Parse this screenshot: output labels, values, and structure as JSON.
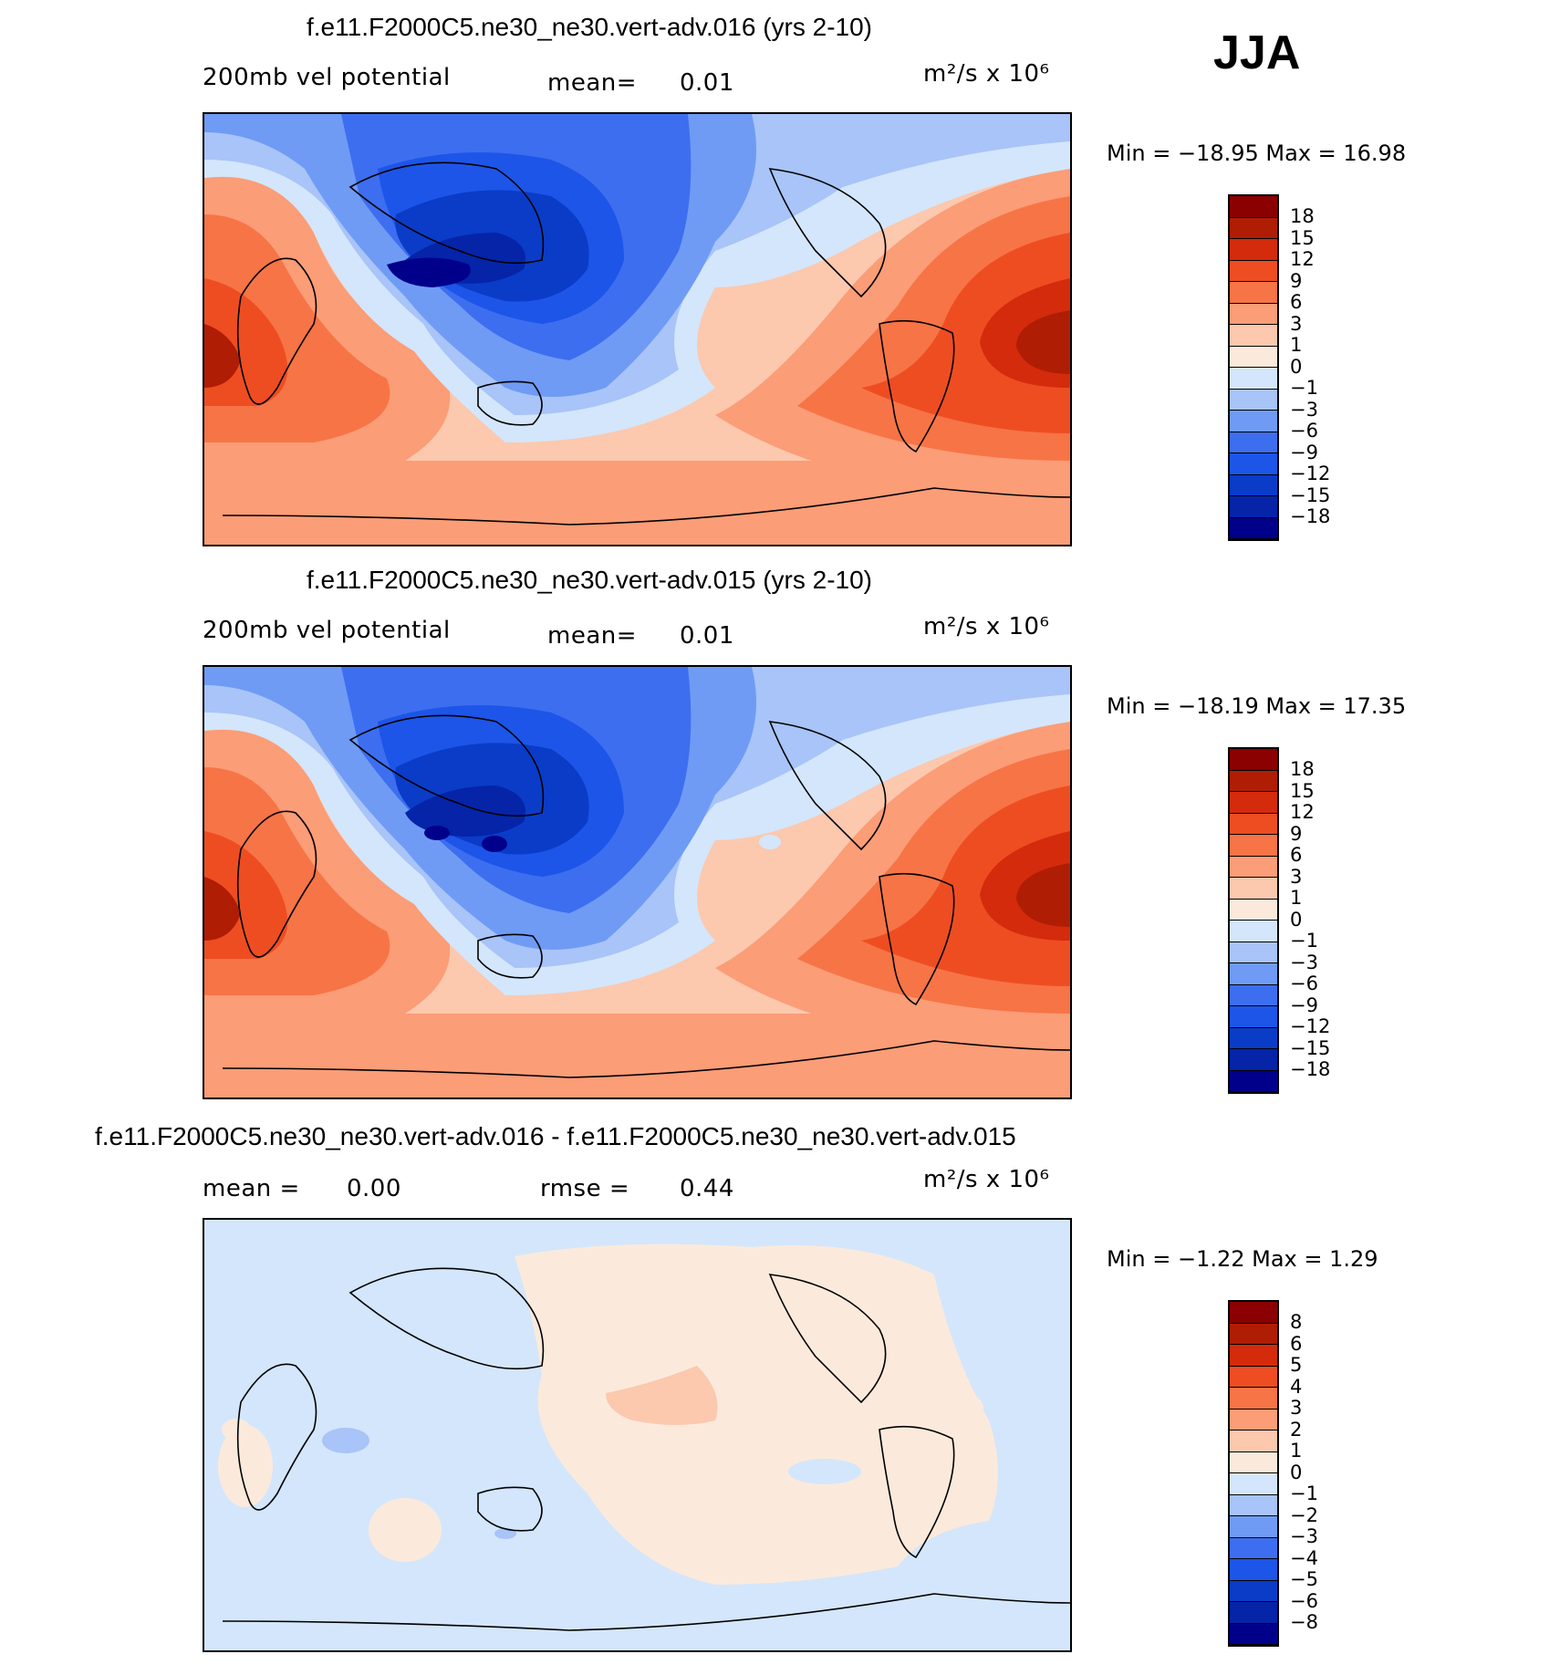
{
  "season": "JJA",
  "panels": [
    {
      "title": "f.e11.F2000C5.ne30_ne30.vert-adv.016 (yrs 2-10)",
      "field": "200mb vel potential",
      "stat1_label": "mean=",
      "stat1_value": "0.01",
      "units": "m²/s x 10⁶",
      "minmax": "Min = −18.95 Max = 16.98",
      "colorbar_ticks": [
        "18",
        "15",
        "12",
        "9",
        "6",
        "3",
        "1",
        "0",
        "−1",
        "−3",
        "−6",
        "−9",
        "−12",
        "−15",
        "−18"
      ]
    },
    {
      "title": "f.e11.F2000C5.ne30_ne30.vert-adv.015 (yrs 2-10)",
      "field": "200mb vel potential",
      "stat1_label": "mean=",
      "stat1_value": "0.01",
      "units": "m²/s x 10⁶",
      "minmax": "Min = −18.19 Max = 17.35",
      "colorbar_ticks": [
        "18",
        "15",
        "12",
        "9",
        "6",
        "3",
        "1",
        "0",
        "−1",
        "−3",
        "−6",
        "−9",
        "−12",
        "−15",
        "−18"
      ]
    },
    {
      "title": "f.e11.F2000C5.ne30_ne30.vert-adv.016 - f.e11.F2000C5.ne30_ne30.vert-adv.015",
      "stat1_label": "mean =",
      "stat1_value": "0.00",
      "stat2_label": "rmse =",
      "stat2_value": "0.44",
      "units": "m²/s x 10⁶",
      "minmax": "Min = −1.22 Max = 1.29",
      "colorbar_ticks": [
        "8",
        "6",
        "5",
        "4",
        "3",
        "2",
        "1",
        "0",
        "−1",
        "−2",
        "−3",
        "−4",
        "−5",
        "−6",
        "−8"
      ]
    }
  ],
  "chart_data": [
    {
      "type": "heatmap",
      "title": "f.e11.F2000C5.ne30_ne30.vert-adv.016 (yrs 2-10)",
      "variable": "200mb vel potential",
      "units": "m²/s x 10⁶",
      "season": "JJA",
      "mean": 0.01,
      "min": -18.95,
      "max": 16.98,
      "levels": [
        -18,
        -15,
        -12,
        -9,
        -6,
        -3,
        -1,
        0,
        1,
        3,
        6,
        9,
        12,
        15,
        18
      ],
      "palette": [
        "#00008b",
        "#0524a8",
        "#0a3cc8",
        "#1d55e8",
        "#3d6ef0",
        "#6f9bf5",
        "#a8c4f8",
        "#d4e6fb",
        "#fbeadc",
        "#fcc8ae",
        "#fb9d77",
        "#f77446",
        "#ee4d22",
        "#d42b0c",
        "#b01d05",
        "#8b0000"
      ]
    },
    {
      "type": "heatmap",
      "title": "f.e11.F2000C5.ne30_ne30.vert-adv.015 (yrs 2-10)",
      "variable": "200mb vel potential",
      "units": "m²/s x 10⁶",
      "season": "JJA",
      "mean": 0.01,
      "min": -18.19,
      "max": 17.35,
      "levels": [
        -18,
        -15,
        -12,
        -9,
        -6,
        -3,
        -1,
        0,
        1,
        3,
        6,
        9,
        12,
        15,
        18
      ],
      "palette": [
        "#00008b",
        "#0524a8",
        "#0a3cc8",
        "#1d55e8",
        "#3d6ef0",
        "#6f9bf5",
        "#a8c4f8",
        "#d4e6fb",
        "#fbeadc",
        "#fcc8ae",
        "#fb9d77",
        "#f77446",
        "#ee4d22",
        "#d42b0c",
        "#b01d05",
        "#8b0000"
      ]
    },
    {
      "type": "heatmap",
      "title": "f.e11.F2000C5.ne30_ne30.vert-adv.016 - f.e11.F2000C5.ne30_ne30.vert-adv.015",
      "units": "m²/s x 10⁶",
      "season": "JJA",
      "mean": 0.0,
      "rmse": 0.44,
      "min": -1.22,
      "max": 1.29,
      "levels": [
        -8,
        -6,
        -5,
        -4,
        -3,
        -2,
        -1,
        0,
        1,
        2,
        3,
        4,
        5,
        6,
        8
      ],
      "palette": [
        "#00008b",
        "#0524a8",
        "#0a3cc8",
        "#1d55e8",
        "#3d6ef0",
        "#6f9bf5",
        "#a8c4f8",
        "#d4e6fb",
        "#fbeadc",
        "#fcc8ae",
        "#fb9d77",
        "#f77446",
        "#ee4d22",
        "#d42b0c",
        "#b01d05",
        "#8b0000"
      ]
    }
  ]
}
